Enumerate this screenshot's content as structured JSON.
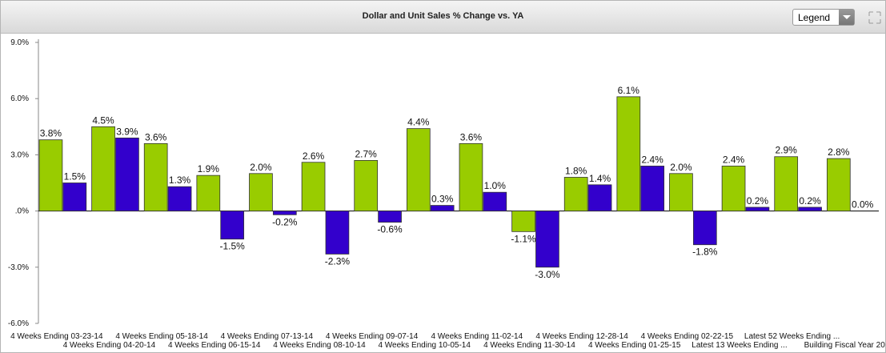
{
  "header": {
    "title": "Dollar and Unit Sales % Change vs. YA",
    "legend_button": "Legend"
  },
  "chart_data": {
    "type": "bar",
    "categories": [
      "4 Weeks Ending 03-23-14",
      "4 Weeks Ending 04-20-14",
      "4 Weeks Ending 05-18-14",
      "4 Weeks Ending 06-15-14",
      "4 Weeks Ending 07-13-14",
      "4 Weeks Ending 08-10-14",
      "4 Weeks Ending 09-07-14",
      "4 Weeks Ending 10-05-14",
      "4 Weeks Ending 11-02-14",
      "4 Weeks Ending 11-30-14",
      "4 Weeks Ending 12-28-14",
      "4 Weeks Ending 01-25-15",
      "4 Weeks Ending 02-22-15",
      "Latest 13 Weeks Ending ...",
      "Latest 52 Weeks Ending ...",
      "Building Fiscal Year 20"
    ],
    "series": [
      {
        "color": "#99cc00",
        "values": [
          3.8,
          4.5,
          3.6,
          1.9,
          2.0,
          2.6,
          2.7,
          4.4,
          3.6,
          -1.1,
          1.8,
          6.1,
          2.0,
          2.4,
          2.9,
          2.8
        ],
        "value_labels": [
          "3.8%",
          "4.5%",
          "3.6%",
          "1.9%",
          "2.0%",
          "2.6%",
          "2.7%",
          "4.4%",
          "3.6%",
          "-1.1%",
          "1.8%",
          "6.1%",
          "2.0%",
          "2.4%",
          "2.9%",
          "2.8%"
        ]
      },
      {
        "color": "#3300cc",
        "values": [
          1.5,
          3.9,
          1.3,
          -1.5,
          -0.2,
          -2.3,
          -0.6,
          0.3,
          1.0,
          -3.0,
          1.4,
          2.4,
          -1.8,
          0.2,
          0.2,
          0.0
        ],
        "value_labels": [
          "1.5%",
          "3.9%",
          "1.3%",
          "-1.5%",
          "-0.2%",
          "-2.3%",
          "-0.6%",
          "0.3%",
          "1.0%",
          "-3.0%",
          "1.4%",
          "2.4%",
          "-1.8%",
          "0.2%",
          "0.2%",
          "0.0%"
        ]
      }
    ],
    "ylim": [
      -6,
      9
    ],
    "yticks": [
      {
        "value": -6,
        "label": "-6.0%"
      },
      {
        "value": -3,
        "label": "-3.0%"
      },
      {
        "value": 0,
        "label": ".0%"
      },
      {
        "value": 3,
        "label": "3.0%"
      },
      {
        "value": 6,
        "label": "6.0%"
      },
      {
        "value": 9,
        "label": "9.0%"
      }
    ]
  }
}
